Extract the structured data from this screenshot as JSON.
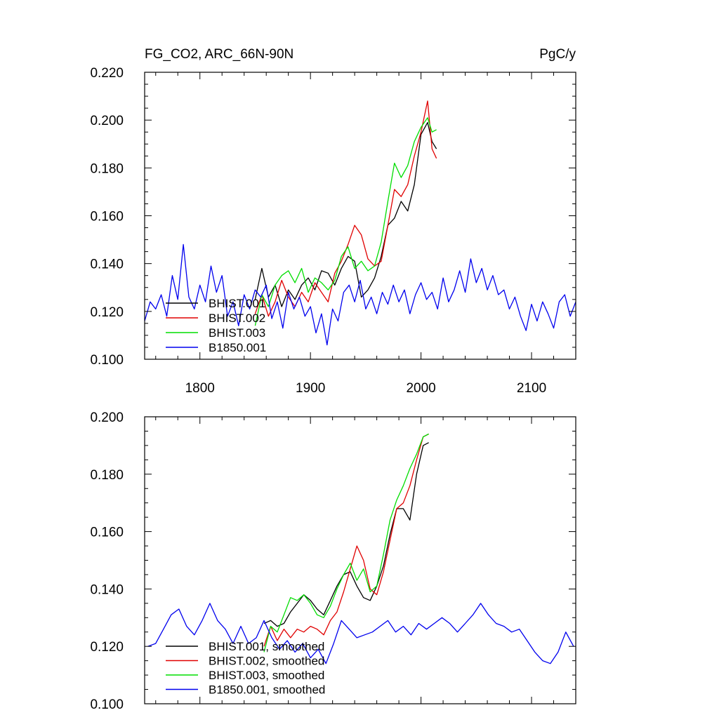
{
  "chart_data": [
    {
      "type": "line",
      "title_left": "FG_CO2, ARC_66N-90N",
      "title_right": "PgC/y",
      "xlim": [
        1750,
        2140
      ],
      "ylim": [
        0.1,
        0.22
      ],
      "yticks": [
        "0.100",
        "0.120",
        "0.140",
        "0.160",
        "0.180",
        "0.200",
        "0.220"
      ],
      "xticks": [
        "1800",
        "1900",
        "2000",
        "2100"
      ],
      "legend_position": "bottom-left",
      "series": [
        {
          "name": "BHIST.001",
          "color": "#000000",
          "x": [
            1850,
            1856,
            1862,
            1868,
            1874,
            1880,
            1886,
            1892,
            1898,
            1904,
            1910,
            1916,
            1922,
            1928,
            1934,
            1940,
            1946,
            1952,
            1958,
            1964,
            1970,
            1976,
            1982,
            1988,
            1994,
            2000,
            2006,
            2010,
            2014
          ],
          "values": [
            0.125,
            0.138,
            0.126,
            0.131,
            0.122,
            0.129,
            0.125,
            0.131,
            0.134,
            0.129,
            0.137,
            0.136,
            0.131,
            0.138,
            0.143,
            0.141,
            0.126,
            0.129,
            0.134,
            0.143,
            0.156,
            0.159,
            0.166,
            0.162,
            0.173,
            0.194,
            0.199,
            0.191,
            0.188
          ]
        },
        {
          "name": "BHIST.002",
          "color": "#e00000",
          "x": [
            1850,
            1856,
            1862,
            1868,
            1874,
            1880,
            1886,
            1892,
            1898,
            1904,
            1910,
            1916,
            1922,
            1928,
            1934,
            1940,
            1946,
            1952,
            1958,
            1964,
            1970,
            1976,
            1982,
            1988,
            1994,
            2000,
            2006,
            2010,
            2014
          ],
          "values": [
            0.119,
            0.127,
            0.118,
            0.124,
            0.133,
            0.126,
            0.122,
            0.128,
            0.124,
            0.132,
            0.128,
            0.124,
            0.136,
            0.141,
            0.148,
            0.156,
            0.152,
            0.142,
            0.139,
            0.141,
            0.156,
            0.171,
            0.168,
            0.173,
            0.185,
            0.195,
            0.208,
            0.188,
            0.184
          ]
        },
        {
          "name": "BHIST.003",
          "color": "#00dd00",
          "x": [
            1850,
            1856,
            1862,
            1868,
            1874,
            1880,
            1886,
            1892,
            1898,
            1904,
            1910,
            1916,
            1922,
            1928,
            1934,
            1940,
            1946,
            1952,
            1958,
            1964,
            1970,
            1976,
            1982,
            1988,
            1994,
            2000,
            2006,
            2010,
            2014
          ],
          "values": [
            0.114,
            0.127,
            0.122,
            0.131,
            0.135,
            0.137,
            0.132,
            0.138,
            0.128,
            0.134,
            0.132,
            0.129,
            0.133,
            0.143,
            0.147,
            0.138,
            0.141,
            0.137,
            0.139,
            0.149,
            0.166,
            0.182,
            0.176,
            0.181,
            0.191,
            0.197,
            0.201,
            0.195,
            0.196
          ]
        },
        {
          "name": "B1850.001",
          "color": "#0000ee",
          "x": [
            1750,
            1755,
            1760,
            1765,
            1770,
            1775,
            1780,
            1785,
            1790,
            1795,
            1800,
            1805,
            1810,
            1815,
            1820,
            1825,
            1830,
            1835,
            1840,
            1845,
            1850,
            1855,
            1860,
            1865,
            1870,
            1875,
            1880,
            1885,
            1890,
            1895,
            1900,
            1905,
            1910,
            1915,
            1920,
            1925,
            1930,
            1935,
            1940,
            1945,
            1950,
            1955,
            1960,
            1965,
            1970,
            1975,
            1980,
            1985,
            1990,
            1995,
            2000,
            2005,
            2010,
            2015,
            2020,
            2025,
            2030,
            2035,
            2040,
            2045,
            2050,
            2055,
            2060,
            2065,
            2070,
            2075,
            2080,
            2085,
            2090,
            2095,
            2100,
            2105,
            2110,
            2115,
            2120,
            2125,
            2130,
            2135,
            2140
          ],
          "values": [
            0.116,
            0.124,
            0.121,
            0.127,
            0.118,
            0.135,
            0.125,
            0.148,
            0.126,
            0.121,
            0.131,
            0.124,
            0.139,
            0.128,
            0.135,
            0.118,
            0.124,
            0.114,
            0.127,
            0.121,
            0.129,
            0.126,
            0.131,
            0.117,
            0.124,
            0.113,
            0.128,
            0.121,
            0.126,
            0.118,
            0.122,
            0.111,
            0.119,
            0.106,
            0.121,
            0.116,
            0.128,
            0.131,
            0.124,
            0.133,
            0.121,
            0.126,
            0.119,
            0.128,
            0.123,
            0.131,
            0.124,
            0.129,
            0.119,
            0.127,
            0.132,
            0.125,
            0.128,
            0.121,
            0.134,
            0.124,
            0.129,
            0.137,
            0.128,
            0.142,
            0.132,
            0.138,
            0.129,
            0.135,
            0.127,
            0.129,
            0.121,
            0.126,
            0.118,
            0.112,
            0.123,
            0.116,
            0.124,
            0.119,
            0.113,
            0.124,
            0.127,
            0.118,
            0.124
          ]
        }
      ]
    },
    {
      "type": "line",
      "xlim": [
        1750,
        2140
      ],
      "ylim": [
        0.1,
        0.2
      ],
      "yticks": [
        "0.100",
        "0.120",
        "0.140",
        "0.160",
        "0.180",
        "0.200"
      ],
      "legend_position": "bottom-left",
      "series": [
        {
          "name": "BHIST.001, smoothed",
          "color": "#000000",
          "x": [
            1858,
            1864,
            1870,
            1876,
            1882,
            1888,
            1894,
            1900,
            1906,
            1912,
            1918,
            1924,
            1930,
            1936,
            1942,
            1948,
            1954,
            1960,
            1966,
            1972,
            1978,
            1984,
            1990,
            1996,
            2002,
            2007
          ],
          "values": [
            0.128,
            0.129,
            0.127,
            0.128,
            0.132,
            0.135,
            0.138,
            0.136,
            0.133,
            0.131,
            0.136,
            0.141,
            0.145,
            0.146,
            0.141,
            0.137,
            0.136,
            0.141,
            0.148,
            0.159,
            0.168,
            0.168,
            0.164,
            0.18,
            0.19,
            0.191
          ]
        },
        {
          "name": "BHIST.002, smoothed",
          "color": "#e00000",
          "x": [
            1858,
            1864,
            1870,
            1876,
            1882,
            1888,
            1894,
            1900,
            1906,
            1912,
            1918,
            1924,
            1930,
            1936,
            1942,
            1948,
            1954,
            1960,
            1966,
            1972,
            1978,
            1984,
            1990,
            1996,
            2002,
            2007
          ],
          "values": [
            0.12,
            0.127,
            0.122,
            0.126,
            0.123,
            0.126,
            0.125,
            0.127,
            0.126,
            0.124,
            0.129,
            0.132,
            0.139,
            0.147,
            0.155,
            0.15,
            0.14,
            0.138,
            0.146,
            0.157,
            0.168,
            0.17,
            0.176,
            0.185,
            0.193,
            0.194
          ]
        },
        {
          "name": "BHIST.003, smoothed",
          "color": "#00dd00",
          "x": [
            1858,
            1864,
            1870,
            1876,
            1882,
            1888,
            1894,
            1900,
            1906,
            1912,
            1918,
            1924,
            1930,
            1936,
            1942,
            1948,
            1954,
            1960,
            1966,
            1972,
            1978,
            1984,
            1990,
            1996,
            2002,
            2007
          ],
          "values": [
            0.118,
            0.127,
            0.125,
            0.131,
            0.137,
            0.136,
            0.138,
            0.135,
            0.131,
            0.13,
            0.134,
            0.14,
            0.145,
            0.149,
            0.143,
            0.147,
            0.139,
            0.141,
            0.152,
            0.164,
            0.171,
            0.176,
            0.182,
            0.187,
            0.193,
            0.194
          ]
        },
        {
          "name": "B1850.001, smoothed",
          "color": "#0000ee",
          "x": [
            1753,
            1760,
            1767,
            1774,
            1781,
            1788,
            1795,
            1802,
            1809,
            1816,
            1823,
            1830,
            1837,
            1844,
            1851,
            1858,
            1865,
            1872,
            1879,
            1886,
            1893,
            1900,
            1907,
            1914,
            1921,
            1928,
            1935,
            1942,
            1949,
            1956,
            1963,
            1970,
            1977,
            1984,
            1991,
            1998,
            2005,
            2012,
            2019,
            2026,
            2033,
            2040,
            2047,
            2054,
            2061,
            2068,
            2075,
            2082,
            2089,
            2096,
            2103,
            2110,
            2117,
            2124,
            2131,
            2138
          ],
          "values": [
            0.12,
            0.121,
            0.126,
            0.131,
            0.133,
            0.127,
            0.124,
            0.129,
            0.135,
            0.129,
            0.126,
            0.121,
            0.127,
            0.121,
            0.123,
            0.129,
            0.123,
            0.119,
            0.122,
            0.118,
            0.121,
            0.116,
            0.119,
            0.114,
            0.121,
            0.129,
            0.126,
            0.123,
            0.124,
            0.125,
            0.127,
            0.129,
            0.125,
            0.127,
            0.124,
            0.128,
            0.126,
            0.128,
            0.13,
            0.128,
            0.125,
            0.128,
            0.131,
            0.135,
            0.131,
            0.128,
            0.127,
            0.125,
            0.126,
            0.122,
            0.118,
            0.115,
            0.114,
            0.118,
            0.125,
            0.12
          ]
        }
      ]
    }
  ]
}
